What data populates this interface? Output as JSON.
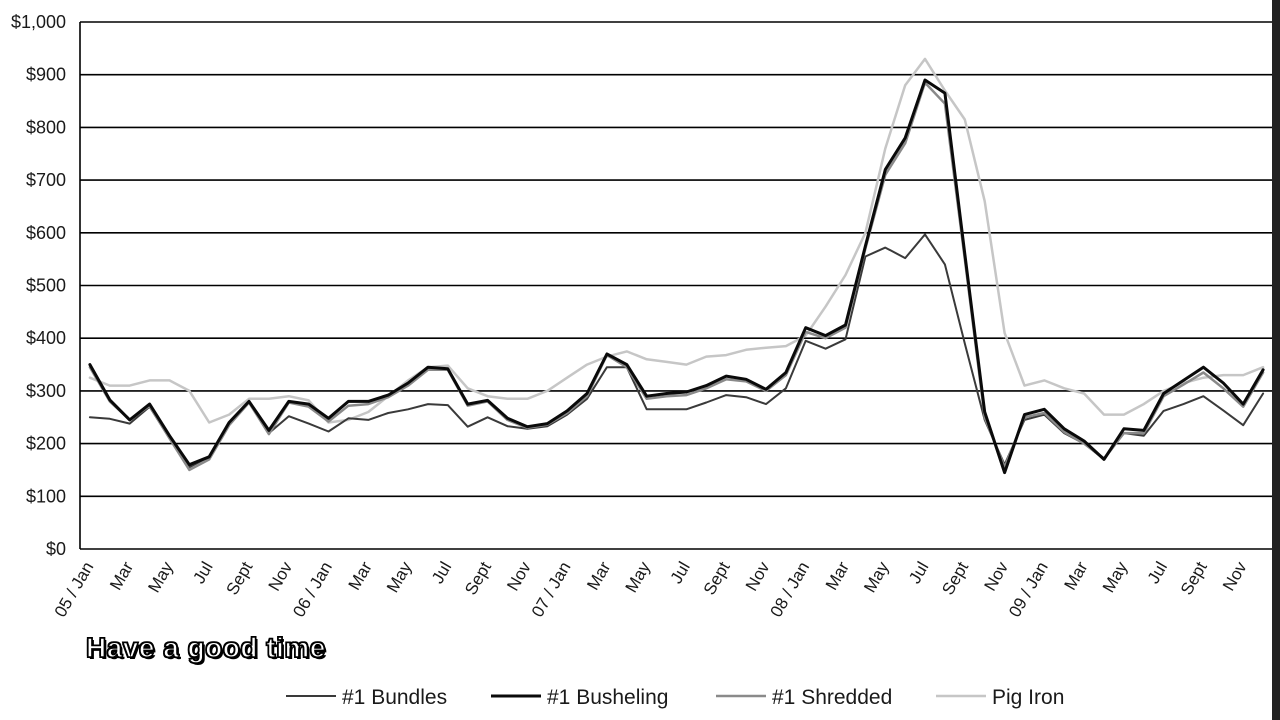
{
  "caption": "Have a good time",
  "chart_data": {
    "type": "line",
    "title": "",
    "xlabel": "",
    "ylabel": "",
    "ylim": [
      0,
      1000
    ],
    "grid": true,
    "legend_position": "bottom",
    "y_ticks": [
      "$0",
      "$100",
      "$200",
      "$300",
      "$400",
      "$500",
      "$600",
      "$700",
      "$800",
      "$900",
      "$1,000"
    ],
    "x_tick_labels": [
      "05 / Jan",
      "Mar",
      "May",
      "Jul",
      "Sept",
      "Nov",
      "06 / Jan",
      "Mar",
      "May",
      "Jul",
      "Sept",
      "Nov",
      "07 / Jan",
      "Mar",
      "May",
      "Jul",
      "Sept",
      "Nov",
      "08 / Jan",
      "Mar",
      "May",
      "Jul",
      "Sept",
      "Nov",
      "09 / Jan",
      "Mar",
      "May",
      "Jul",
      "Sept",
      "Nov"
    ],
    "x_tick_months": [
      0,
      2,
      4,
      6,
      8,
      10,
      12,
      14,
      16,
      18,
      20,
      22,
      24,
      26,
      28,
      30,
      32,
      34,
      36,
      38,
      40,
      42,
      44,
      46,
      48,
      50,
      52,
      54,
      56,
      58
    ],
    "n_months": 60,
    "series": [
      {
        "name": "#1 Bundles",
        "color": "#3a3a3a",
        "width": 2,
        "values": [
          250,
          247,
          238,
          270,
          210,
          155,
          175,
          240,
          280,
          220,
          252,
          238,
          223,
          248,
          245,
          258,
          265,
          275,
          273,
          232,
          250,
          233,
          228,
          233,
          255,
          285,
          345,
          345,
          265,
          265,
          265,
          278,
          292,
          288,
          275,
          305,
          395,
          380,
          398,
          555,
          572,
          552,
          597,
          540,
          390,
          245,
          160,
          245,
          255,
          220,
          200,
          170,
          220,
          215,
          262,
          275,
          290,
          263,
          235,
          295
        ]
      },
      {
        "name": "#1 Busheling",
        "color": "#0a0a0a",
        "width": 3,
        "values": [
          350,
          283,
          245,
          275,
          215,
          160,
          175,
          240,
          280,
          225,
          280,
          275,
          248,
          280,
          280,
          292,
          315,
          345,
          342,
          275,
          282,
          248,
          232,
          238,
          262,
          295,
          370,
          350,
          290,
          295,
          298,
          310,
          328,
          322,
          303,
          335,
          420,
          405,
          425,
          575,
          720,
          780,
          890,
          865,
          560,
          260,
          145,
          255,
          265,
          228,
          205,
          170,
          228,
          225,
          295,
          320,
          345,
          315,
          275,
          340
        ]
      },
      {
        "name": "#1 Shredded",
        "color": "#8a8a8a",
        "width": 2.5,
        "values": [
          345,
          280,
          245,
          272,
          210,
          150,
          170,
          235,
          278,
          218,
          278,
          270,
          242,
          272,
          275,
          288,
          310,
          340,
          340,
          272,
          280,
          245,
          230,
          236,
          258,
          290,
          368,
          345,
          285,
          290,
          292,
          305,
          322,
          318,
          300,
          330,
          412,
          400,
          420,
          570,
          710,
          770,
          885,
          845,
          550,
          250,
          155,
          250,
          258,
          222,
          200,
          172,
          220,
          220,
          290,
          312,
          335,
          305,
          270,
          335
        ]
      },
      {
        "name": "Pig Iron",
        "color": "#c6c6c6",
        "width": 2.5,
        "values": [
          325,
          310,
          310,
          320,
          320,
          300,
          240,
          255,
          285,
          285,
          290,
          282,
          240,
          245,
          260,
          290,
          320,
          345,
          348,
          305,
          290,
          285,
          285,
          300,
          325,
          350,
          365,
          375,
          360,
          355,
          350,
          365,
          368,
          378,
          382,
          385,
          405,
          460,
          520,
          600,
          760,
          880,
          930,
          870,
          815,
          660,
          410,
          310,
          320,
          305,
          295,
          255,
          255,
          275,
          300,
          315,
          325,
          330,
          330,
          345
        ]
      }
    ]
  }
}
